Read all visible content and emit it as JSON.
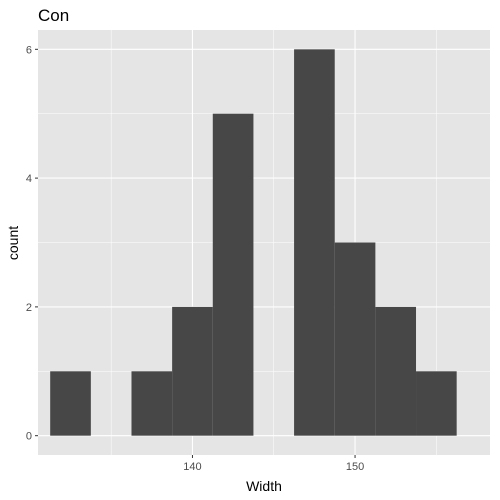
{
  "colors": {
    "panel_background": "#e5e5e5",
    "grid_major": "#ffffff",
    "bar_fill": "#474747",
    "tick_text": "#4d4d4d",
    "tick_mark": "#333333"
  },
  "chart_data": {
    "type": "bar",
    "subtype": "histogram",
    "title": "Con",
    "xlabel": "Width",
    "ylabel": "count",
    "xlim": [
      130.5,
      158.3
    ],
    "ylim": [
      -0.3,
      6.3
    ],
    "binwidth": 2.5,
    "bins": [
      {
        "start": 131.25,
        "end": 133.75,
        "count": 1
      },
      {
        "start": 133.75,
        "end": 136.25,
        "count": 0
      },
      {
        "start": 136.25,
        "end": 138.75,
        "count": 1
      },
      {
        "start": 138.75,
        "end": 141.25,
        "count": 2
      },
      {
        "start": 141.25,
        "end": 143.75,
        "count": 5
      },
      {
        "start": 143.75,
        "end": 146.25,
        "count": 0
      },
      {
        "start": 146.25,
        "end": 148.75,
        "count": 6
      },
      {
        "start": 148.75,
        "end": 151.25,
        "count": 3
      },
      {
        "start": 151.25,
        "end": 153.75,
        "count": 2
      },
      {
        "start": 153.75,
        "end": 156.25,
        "count": 1
      }
    ],
    "x_ticks": [
      140,
      150
    ],
    "x_minor": [
      135,
      145,
      155
    ],
    "y_ticks": [
      0,
      2,
      4,
      6
    ],
    "y_minor": [
      1,
      3,
      5
    ],
    "grid": true,
    "legend": "none"
  }
}
